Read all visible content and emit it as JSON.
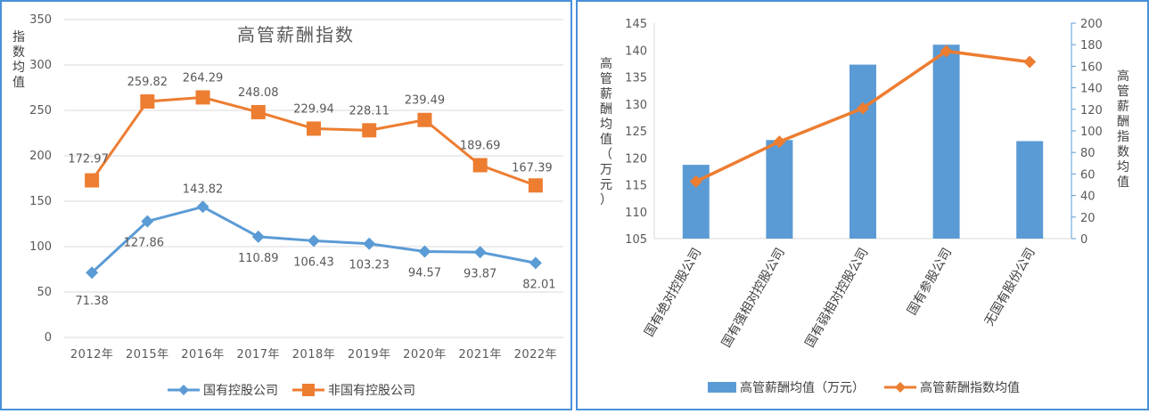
{
  "colors": {
    "blue": "#5b9bd5",
    "orange": "#ed7d31",
    "axis": "#d9d9d9",
    "frame": "#4a90d9"
  },
  "left": {
    "chart_data": {
      "type": "line",
      "title": "高管薪酬指数",
      "ylabel": "指数均值",
      "categories": [
        "2012年",
        "2015年",
        "2016年",
        "2017年",
        "2018年",
        "2019年",
        "2020年",
        "2021年",
        "2022年"
      ],
      "y_ticks": [
        "0",
        "50",
        "100",
        "150",
        "200",
        "250",
        "300",
        "350"
      ],
      "ylim": [
        0,
        350
      ],
      "series": [
        {
          "name": "国有控股公司",
          "color": "#5b9bd5",
          "marker": "diamond",
          "values": [
            71.38,
            127.86,
            143.82,
            110.89,
            106.43,
            103.23,
            94.57,
            93.87,
            82.01
          ],
          "labels": [
            "71.38",
            "127.86",
            "143.82",
            "110.89",
            "106.43",
            "103.23",
            "94.57",
            "93.87",
            "82.01"
          ]
        },
        {
          "name": "非国有控股公司",
          "color": "#ed7d31",
          "marker": "square",
          "values": [
            172.97,
            259.82,
            264.29,
            248.08,
            229.94,
            228.11,
            239.49,
            189.69,
            167.39
          ],
          "labels": [
            "172.97",
            "259.82",
            "264.29",
            "248.08",
            "229.94",
            "228.11",
            "239.49",
            "189.69",
            "167.39"
          ]
        }
      ],
      "legend": "bottom",
      "grid": "horizontal"
    }
  },
  "right": {
    "chart_data": {
      "type": "bar",
      "categories": [
        "国有绝对控股公司",
        "国有强相对控股公司",
        "国有弱相对控股公司",
        "国有参股公司",
        "无国有股份公司"
      ],
      "ylabel_left": "高管薪酬均值（万元）",
      "ylabel_right": "高管薪酬指数均值",
      "y_left_ticks": [
        "105",
        "110",
        "115",
        "120",
        "125",
        "130",
        "135",
        "140",
        "145"
      ],
      "ylim_left": [
        105,
        145
      ],
      "y_right_ticks": [
        "0",
        "20",
        "40",
        "60",
        "80",
        "100",
        "120",
        "140",
        "160",
        "180",
        "200"
      ],
      "ylim_right": [
        0,
        200
      ],
      "series": [
        {
          "name": "高管薪酬均值（万元）",
          "type": "bar",
          "axis": "left",
          "color": "#5b9bd5",
          "values": [
            118.7,
            123.3,
            137.3,
            141.0,
            123.1
          ]
        },
        {
          "name": "高管薪酬指数均值",
          "type": "line",
          "axis": "right",
          "color": "#ed7d31",
          "marker": "diamond",
          "values": [
            53,
            90,
            121,
            174,
            164
          ]
        }
      ],
      "legend": "bottom",
      "grid": "none"
    }
  }
}
